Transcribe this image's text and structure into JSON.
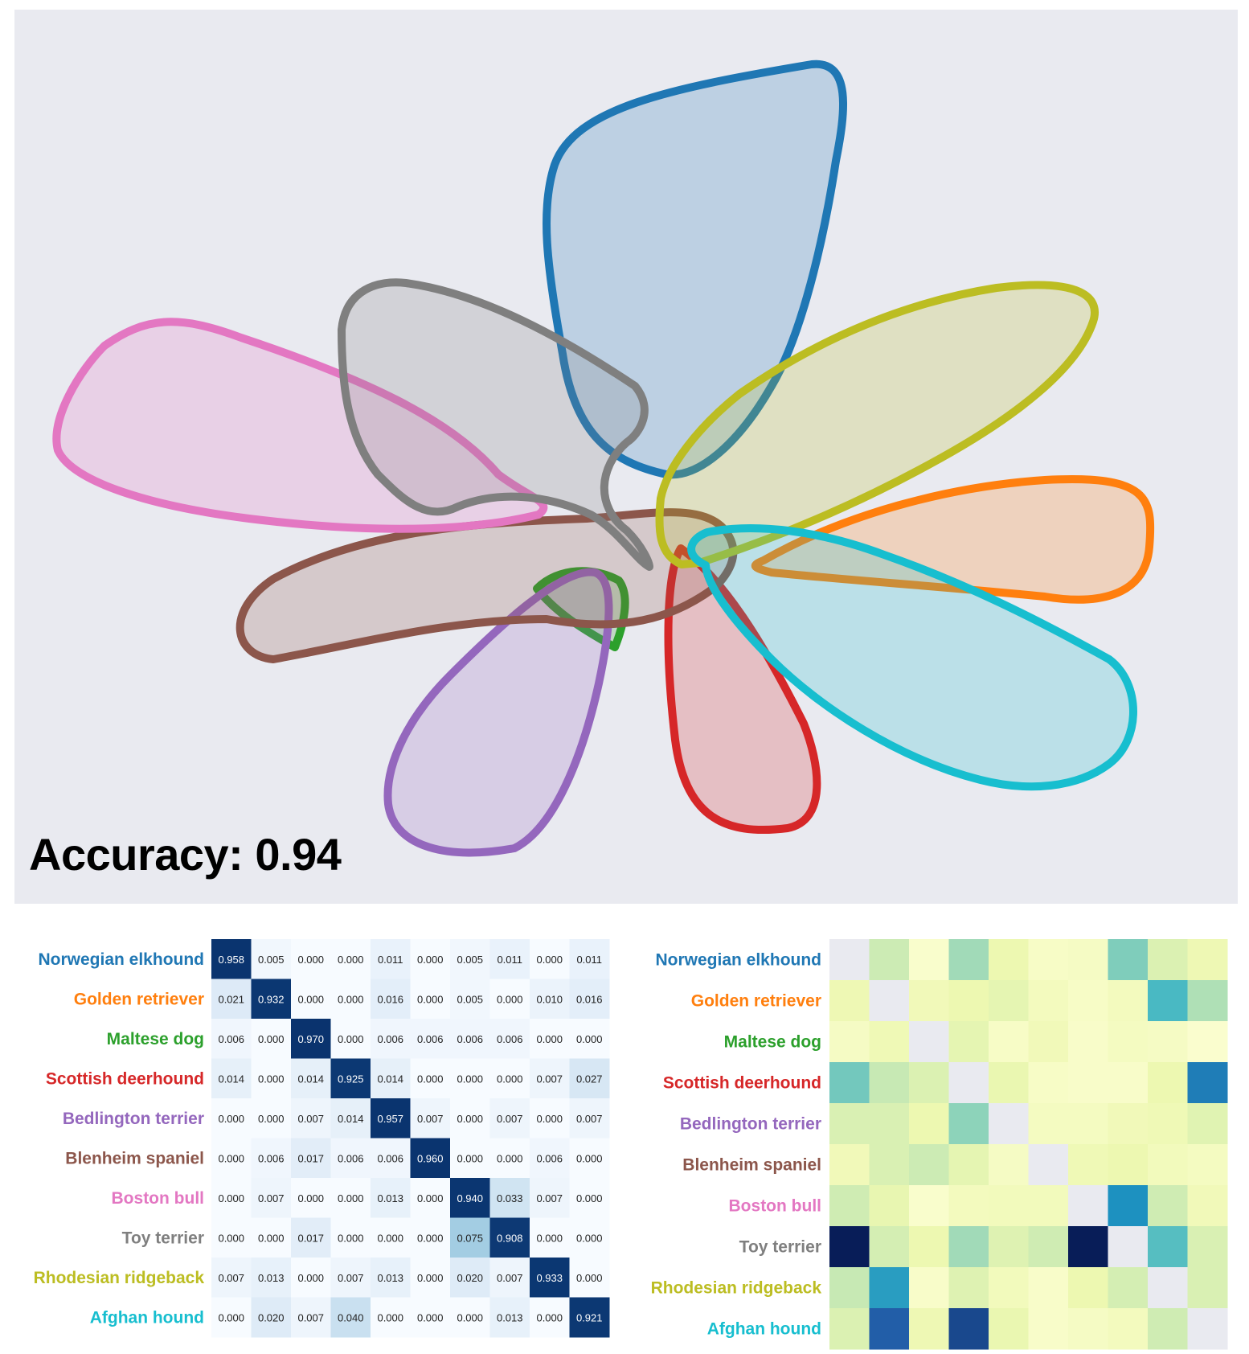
{
  "accuracy_text": "Accuracy: 0.94",
  "chart_data": [
    {
      "type": "area",
      "series": [
        {
          "name": "Norwegian elkhound",
          "color": "#1f77b4"
        },
        {
          "name": "Golden retriever",
          "color": "#ff7f0e"
        },
        {
          "name": "Maltese dog",
          "color": "#2ca02c"
        },
        {
          "name": "Scottish deerhound",
          "color": "#d62728"
        },
        {
          "name": "Bedlington terrier",
          "color": "#9467bd"
        },
        {
          "name": "Blenheim spaniel",
          "color": "#8c564b"
        },
        {
          "name": "Boston bull",
          "color": "#e377c2"
        },
        {
          "name": "Toy terrier",
          "color": "#7f7f7f"
        },
        {
          "name": "Rhodesian ridgeback",
          "color": "#bcbd22"
        },
        {
          "name": "Afghan hound",
          "color": "#17becf"
        }
      ]
    },
    {
      "type": "heatmap",
      "rows": [
        "Norwegian elkhound",
        "Golden retriever",
        "Maltese dog",
        "Scottish deerhound",
        "Bedlington terrier",
        "Blenheim spaniel",
        "Boston bull",
        "Toy terrier",
        "Rhodesian ridgeback",
        "Afghan hound"
      ],
      "values": [
        [
          "0.958",
          "0.005",
          "0.000",
          "0.000",
          "0.011",
          "0.000",
          "0.005",
          "0.011",
          "0.000",
          "0.011"
        ],
        [
          "0.021",
          "0.932",
          "0.000",
          "0.000",
          "0.016",
          "0.000",
          "0.005",
          "0.000",
          "0.010",
          "0.016"
        ],
        [
          "0.006",
          "0.000",
          "0.970",
          "0.000",
          "0.006",
          "0.006",
          "0.006",
          "0.006",
          "0.000",
          "0.000"
        ],
        [
          "0.014",
          "0.000",
          "0.014",
          "0.925",
          "0.014",
          "0.000",
          "0.000",
          "0.000",
          "0.007",
          "0.027"
        ],
        [
          "0.000",
          "0.000",
          "0.007",
          "0.014",
          "0.957",
          "0.007",
          "0.000",
          "0.007",
          "0.000",
          "0.007"
        ],
        [
          "0.000",
          "0.006",
          "0.017",
          "0.006",
          "0.006",
          "0.960",
          "0.000",
          "0.000",
          "0.006",
          "0.000"
        ],
        [
          "0.000",
          "0.007",
          "0.000",
          "0.000",
          "0.013",
          "0.000",
          "0.940",
          "0.033",
          "0.007",
          "0.000"
        ],
        [
          "0.000",
          "0.000",
          "0.017",
          "0.000",
          "0.000",
          "0.000",
          "0.075",
          "0.908",
          "0.000",
          "0.000"
        ],
        [
          "0.007",
          "0.013",
          "0.000",
          "0.007",
          "0.013",
          "0.000",
          "0.020",
          "0.007",
          "0.933",
          "0.000"
        ],
        [
          "0.000",
          "0.020",
          "0.007",
          "0.040",
          "0.000",
          "0.000",
          "0.000",
          "0.013",
          "0.000",
          "0.921"
        ]
      ],
      "colorscale": "Blues"
    },
    {
      "type": "heatmap",
      "rows": [
        "Norwegian elkhound",
        "Golden retriever",
        "Maltese dog",
        "Scottish deerhound",
        "Bedlington terrier",
        "Blenheim spaniel",
        "Boston bull",
        "Toy terrier",
        "Rhodesian ridgeback",
        "Afghan hound"
      ],
      "intensity": [
        [
          null,
          0.28,
          0.05,
          0.38,
          0.15,
          0.07,
          0.08,
          0.45,
          0.22,
          0.14
        ],
        [
          0.14,
          null,
          0.12,
          0.15,
          0.18,
          0.1,
          0.07,
          0.1,
          0.58,
          0.35
        ],
        [
          0.08,
          0.13,
          null,
          0.18,
          0.07,
          0.12,
          0.06,
          0.09,
          0.08,
          0.04
        ],
        [
          0.48,
          0.3,
          0.22,
          null,
          0.16,
          0.07,
          0.06,
          0.06,
          0.15,
          0.8
        ],
        [
          0.23,
          0.23,
          0.15,
          0.42,
          null,
          0.09,
          0.09,
          0.12,
          0.13,
          0.2
        ],
        [
          0.12,
          0.23,
          0.28,
          0.18,
          0.08,
          null,
          0.13,
          0.15,
          0.11,
          0.09
        ],
        [
          0.27,
          0.17,
          0.05,
          0.1,
          0.11,
          0.11,
          null,
          0.75,
          0.27,
          0.12
        ],
        [
          1.0,
          0.25,
          0.15,
          0.38,
          0.21,
          0.27,
          1.02,
          null,
          0.55,
          0.23
        ],
        [
          0.3,
          0.7,
          0.06,
          0.21,
          0.11,
          0.06,
          0.15,
          0.25,
          null,
          0.23
        ],
        [
          0.22,
          0.88,
          0.14,
          0.92,
          0.16,
          0.06,
          0.08,
          0.1,
          0.27,
          null
        ]
      ],
      "colorscale": "YlGnBu"
    }
  ]
}
